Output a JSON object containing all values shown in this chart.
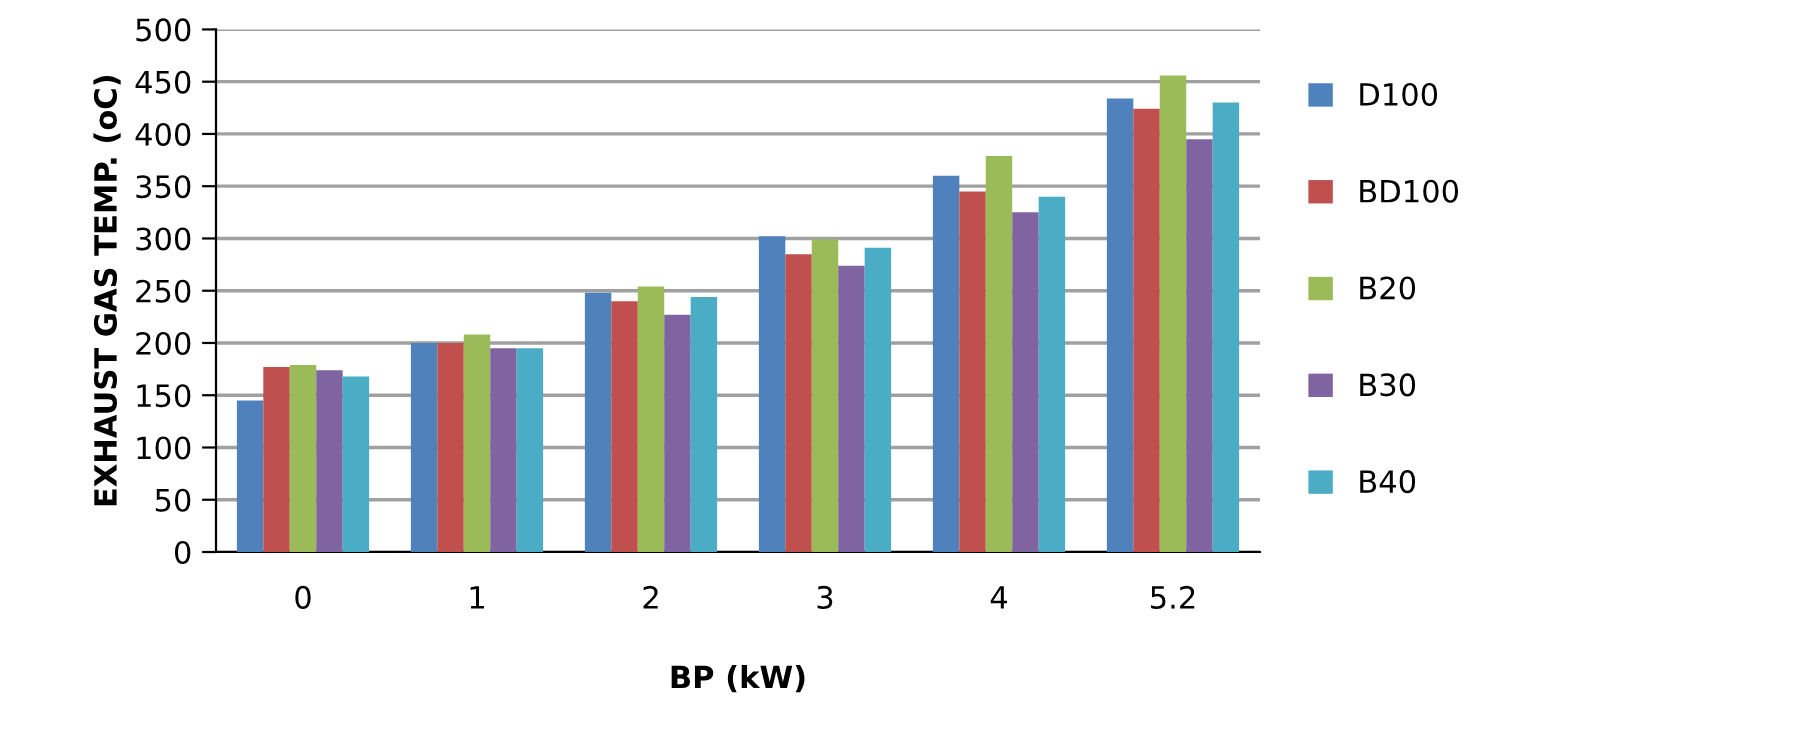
{
  "chart_data": {
    "type": "bar",
    "xlabel": "BP (kW)",
    "ylabel": "EXHAUST GAS TEMP. (oC)",
    "categories": [
      "0",
      "1",
      "2",
      "3",
      "4",
      "5.2"
    ],
    "series": [
      {
        "name": "D100",
        "color": "#4f81bd",
        "values": [
          145,
          200,
          248,
          302,
          360,
          434
        ]
      },
      {
        "name": "BD100",
        "color": "#c0504d",
        "values": [
          177,
          200,
          240,
          285,
          345,
          424
        ]
      },
      {
        "name": "B20",
        "color": "#9bbb59",
        "values": [
          179,
          208,
          254,
          299,
          379,
          456
        ]
      },
      {
        "name": "B30",
        "color": "#8064a2",
        "values": [
          174,
          195,
          227,
          274,
          325,
          395
        ]
      },
      {
        "name": "B40",
        "color": "#4bacc6",
        "values": [
          168,
          195,
          244,
          291,
          340,
          430
        ]
      }
    ],
    "ylim": [
      0,
      500
    ],
    "yticks": [
      0,
      50,
      100,
      150,
      200,
      250,
      300,
      350,
      400,
      450,
      500
    ],
    "grid": "y",
    "legend": "right"
  }
}
